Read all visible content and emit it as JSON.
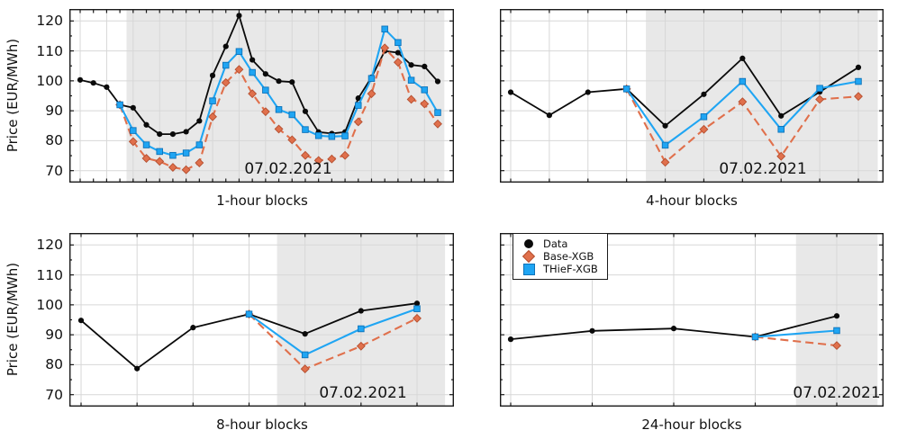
{
  "figure": {
    "ylabel": "Price (EUR/MWh)",
    "yticks": [
      120,
      110,
      100,
      90,
      80,
      70
    ],
    "ylim": [
      66,
      124
    ],
    "grid": true,
    "colors": {
      "data": "#0a0a0a",
      "base_xgb": "#e0704c",
      "base_xgb_marker_stroke": "#b44f30",
      "thief_xgb": "#1fa5f3",
      "thief_xgb_marker_stroke": "#0e72b8",
      "shade": "#e8e8e8",
      "grid": "#d7d7d7",
      "frame": "#1a1a1a"
    },
    "legend": {
      "position": "top-left-of-24-hour-chart",
      "items": [
        {
          "label": "Data",
          "marker": "circle",
          "color": "#0a0a0a"
        },
        {
          "label": "Base-XGB",
          "marker": "diamond",
          "color": "#e0704c"
        },
        {
          "label": "THieF-XGB",
          "marker": "square",
          "color": "#1fa5f3"
        }
      ]
    }
  },
  "chart_data": [
    {
      "type": "line",
      "xlabel": "1-hour blocks",
      "ylabel": "Price (EUR/MWh)",
      "annotation": "07.02.2021",
      "forecast_start_index": 3,
      "series": [
        {
          "name": "Data",
          "marker": "circle",
          "style": "solid",
          "start_index": 0,
          "values": [
            100.3,
            99.3,
            97.9,
            92.0,
            91.0,
            85.3,
            82.2,
            82.2,
            83.0,
            86.6,
            101.8,
            111.5,
            121.8,
            107.0,
            102.3,
            99.9,
            99.6,
            89.8,
            82.9,
            82.4,
            82.9,
            94.2,
            101.2,
            110.0,
            109.4,
            105.3,
            104.8,
            99.8
          ]
        },
        {
          "name": "Base-XGB",
          "marker": "diamond",
          "style": "dashed",
          "start_index": 3,
          "values": [
            92.0,
            79.7,
            74.1,
            73.1,
            71.1,
            70.3,
            72.6,
            88.0,
            99.4,
            103.8,
            95.7,
            89.7,
            83.9,
            80.3,
            75.1,
            73.4,
            73.9,
            75.1,
            86.3,
            95.7,
            111.0,
            106.2,
            93.8,
            92.3,
            85.6
          ]
        },
        {
          "name": "THieF-XGB",
          "marker": "square",
          "style": "solid",
          "start_index": 3,
          "values": [
            92.0,
            83.4,
            78.6,
            76.4,
            75.1,
            75.9,
            78.6,
            93.3,
            105.2,
            109.8,
            102.8,
            96.9,
            90.4,
            88.7,
            83.7,
            81.7,
            81.4,
            81.6,
            91.8,
            100.8,
            117.3,
            112.8,
            100.2,
            97.0,
            89.4
          ]
        }
      ]
    },
    {
      "type": "line",
      "xlabel": "4-hour blocks",
      "ylabel": "",
      "annotation": "07.02.2021",
      "forecast_start_index": 3,
      "series": [
        {
          "name": "Data",
          "marker": "circle",
          "style": "solid",
          "start_index": 0,
          "values": [
            96.2,
            88.5,
            96.2,
            97.3,
            85.0,
            95.5,
            107.5,
            88.3,
            96.3,
            104.5
          ]
        },
        {
          "name": "Base-XGB",
          "marker": "diamond",
          "style": "dashed",
          "start_index": 3,
          "values": [
            97.3,
            72.8,
            83.8,
            93.0,
            74.8,
            93.8,
            94.8
          ]
        },
        {
          "name": "THieF-XGB",
          "marker": "square",
          "style": "solid",
          "start_index": 3,
          "values": [
            97.3,
            78.5,
            88.0,
            99.8,
            83.8,
            97.5,
            99.8
          ]
        }
      ]
    },
    {
      "type": "line",
      "xlabel": "8-hour blocks",
      "ylabel": "Price (EUR/MWh)",
      "annotation": "07.02.2021",
      "forecast_start_index": 3,
      "series": [
        {
          "name": "Data",
          "marker": "circle",
          "style": "solid",
          "start_index": 0,
          "values": [
            94.8,
            78.7,
            92.4,
            96.9,
            90.3,
            98.0,
            100.5
          ]
        },
        {
          "name": "Base-XGB",
          "marker": "diamond",
          "style": "dashed",
          "start_index": 3,
          "values": [
            96.9,
            78.6,
            86.2,
            95.5
          ]
        },
        {
          "name": "THieF-XGB",
          "marker": "square",
          "style": "solid",
          "start_index": 3,
          "values": [
            96.9,
            83.3,
            92.0,
            98.7
          ]
        }
      ]
    },
    {
      "type": "line",
      "xlabel": "24-hour blocks",
      "ylabel": "",
      "annotation": "07.02.2021",
      "forecast_start_index": 3,
      "series": [
        {
          "name": "Data",
          "marker": "circle",
          "style": "solid",
          "start_index": 0,
          "values": [
            88.5,
            91.3,
            92.1,
            89.3,
            96.3
          ]
        },
        {
          "name": "Base-XGB",
          "marker": "diamond",
          "style": "dashed",
          "start_index": 3,
          "values": [
            89.3,
            86.4
          ]
        },
        {
          "name": "THieF-XGB",
          "marker": "square",
          "style": "solid",
          "start_index": 3,
          "values": [
            89.3,
            91.4
          ]
        }
      ]
    }
  ]
}
